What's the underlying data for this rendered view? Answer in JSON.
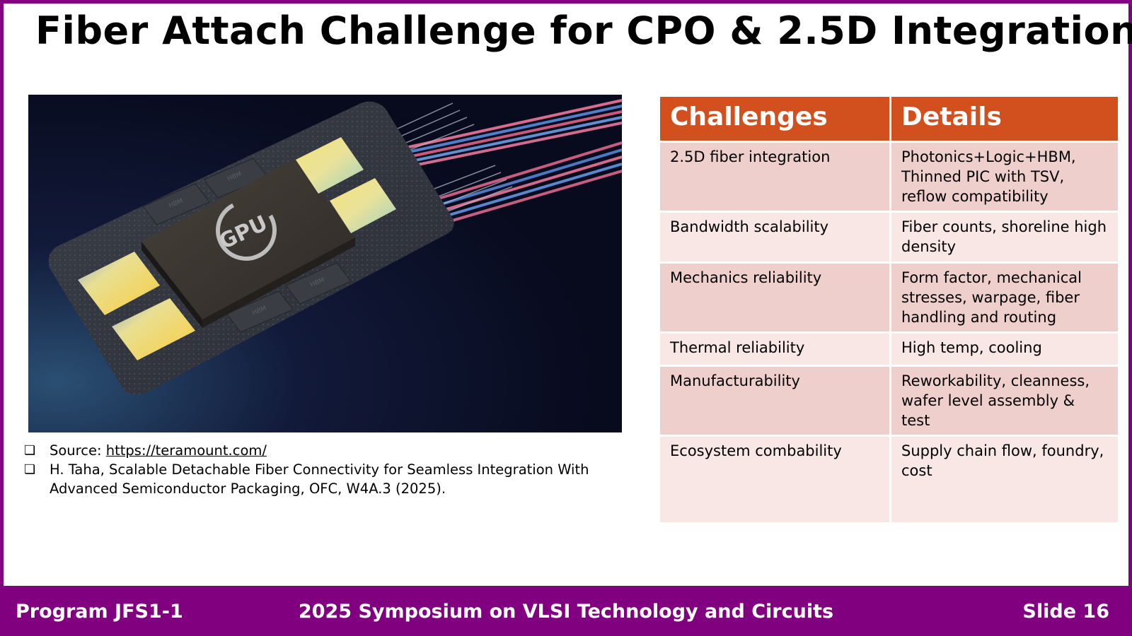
{
  "slide": {
    "title": "Fiber Attach Challenge for CPO & 2.5D Integration"
  },
  "figure": {
    "chip_label": "GPU",
    "hbm_label": "HBM"
  },
  "references": {
    "source_prefix": "Source: ",
    "source_link": "https://teramount.com/",
    "citation": "H. Taha, Scalable Detachable Fiber Connectivity for Seamless Integration With Advanced Semiconductor Packaging, OFC, W4A.3 (2025)."
  },
  "table": {
    "headers": [
      "Challenges",
      "Details"
    ],
    "rows": [
      {
        "challenge": "2.5D fiber integration",
        "detail": "Photonics+Logic+HBM, Thinned PIC with TSV, reflow compatibility"
      },
      {
        "challenge": "Bandwidth scalability",
        "detail": "Fiber counts, shoreline high density"
      },
      {
        "challenge": "Mechanics reliability",
        "detail": "Form factor, mechanical stresses, warpage, fiber handling and routing"
      },
      {
        "challenge": "Thermal reliability",
        "detail": "High temp, cooling"
      },
      {
        "challenge": "Manufacturability",
        "detail": "Reworkability, cleanness, wafer level assembly & test"
      },
      {
        "challenge": "Ecosystem combability",
        "detail": "Supply chain flow, foundry, cost"
      }
    ]
  },
  "footer": {
    "program": "Program JFS1-1",
    "conference": "2025 Symposium on VLSI Technology and Circuits",
    "slide_number": "Slide 16"
  },
  "colors": {
    "accent_purple": "#800080",
    "header_orange": "#d24f1e",
    "row_dark": "#efcfcc",
    "row_light": "#f8e7e5"
  }
}
